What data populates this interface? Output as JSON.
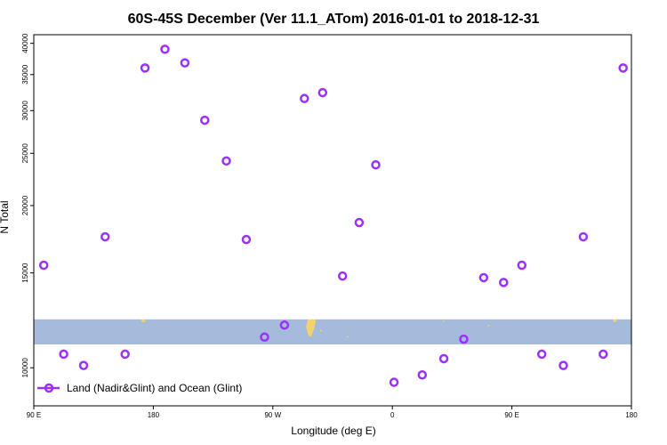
{
  "chart_data": {
    "type": "scatter",
    "title": "60S-45S December (Ver 11.1_ATom)   2016-01-01 to 2018-12-31",
    "xlabel": "Longitude (deg E)",
    "ylabel": "N Total",
    "y_scale": "log",
    "xlim": [
      90,
      450
    ],
    "ylim": [
      8500,
      41500
    ],
    "x_ticks": [
      {
        "value": 90,
        "label": "90 E"
      },
      {
        "value": 162,
        "label": "180"
      },
      {
        "value": 234,
        "label": "90 W"
      },
      {
        "value": 306,
        "label": "0"
      },
      {
        "value": 378,
        "label": "90 E"
      },
      {
        "value": 450,
        "label": "180"
      }
    ],
    "y_ticks": [
      {
        "value": 10000,
        "label": "10000"
      },
      {
        "value": 15000,
        "label": "15000"
      },
      {
        "value": 20000,
        "label": "20000"
      },
      {
        "value": 25000,
        "label": "25000"
      },
      {
        "value": 30000,
        "label": "30000"
      },
      {
        "value": 35000,
        "label": "35000"
      },
      {
        "value": 40000,
        "label": "40000"
      }
    ],
    "series": [
      {
        "name": "Land (Nadir&Glint) and Ocean (Glint)",
        "color": "#9b30ff",
        "marker": "open-circle",
        "points": [
          {
            "x": 96,
            "y": 15500
          },
          {
            "x": 108,
            "y": 10600
          },
          {
            "x": 120,
            "y": 10100
          },
          {
            "x": 133,
            "y": 17500
          },
          {
            "x": 145,
            "y": 10600
          },
          {
            "x": 157,
            "y": 36000
          },
          {
            "x": 169,
            "y": 39000
          },
          {
            "x": 181,
            "y": 36800
          },
          {
            "x": 193,
            "y": 28800
          },
          {
            "x": 206,
            "y": 24200
          },
          {
            "x": 218,
            "y": 17300
          },
          {
            "x": 229,
            "y": 11400
          },
          {
            "x": 241,
            "y": 12000
          },
          {
            "x": 253,
            "y": 31600
          },
          {
            "x": 264,
            "y": 32400
          },
          {
            "x": 276,
            "y": 14800
          },
          {
            "x": 286,
            "y": 18600
          },
          {
            "x": 296,
            "y": 23800
          },
          {
            "x": 307,
            "y": 9400
          },
          {
            "x": 324,
            "y": 9700
          },
          {
            "x": 337,
            "y": 10400
          },
          {
            "x": 349,
            "y": 11300
          },
          {
            "x": 361,
            "y": 14700
          },
          {
            "x": 373,
            "y": 14400
          },
          {
            "x": 384,
            "y": 15500
          },
          {
            "x": 396,
            "y": 10600
          },
          {
            "x": 409,
            "y": 10100
          },
          {
            "x": 421,
            "y": 17500
          },
          {
            "x": 433,
            "y": 10600
          },
          {
            "x": 445,
            "y": 36000
          }
        ]
      }
    ],
    "band": {
      "color": "#a4bbdb",
      "y_min": 11050,
      "y_max": 12300
    },
    "land_color": "#f5d36a",
    "legend": {
      "position": "bottom-left",
      "label": "Land (Nadir&Glint) and Ocean (Glint)"
    },
    "grid": false
  }
}
